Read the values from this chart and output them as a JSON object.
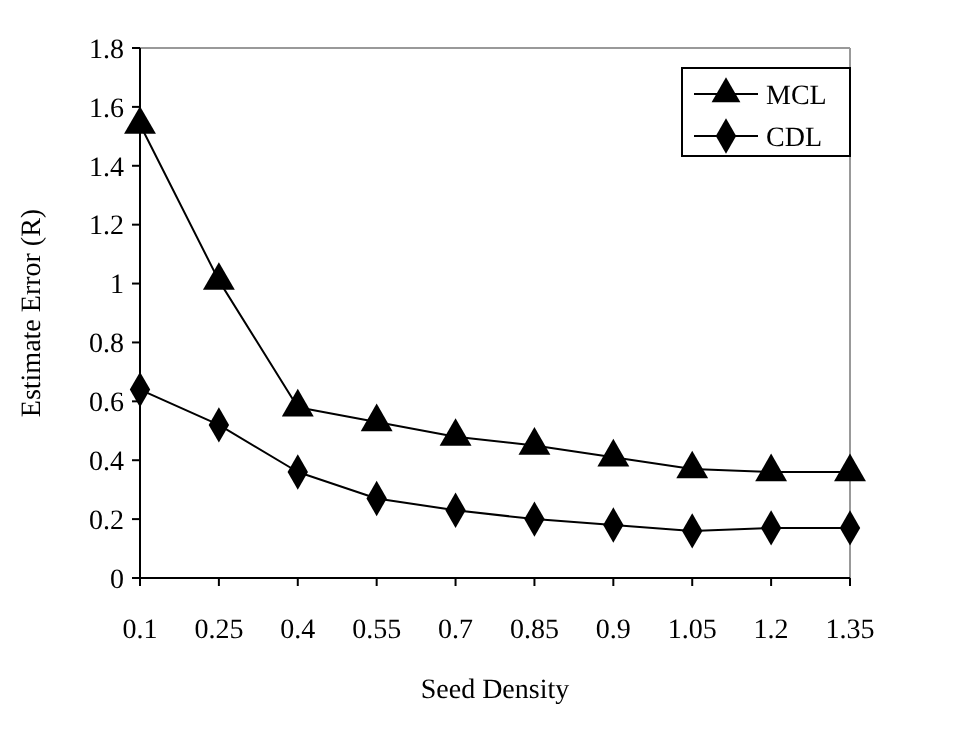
{
  "chart_data": {
    "type": "line",
    "xlabel": "Seed Density",
    "ylabel": "Estimate Error (R)",
    "categories": [
      "0.1",
      "0.25",
      "0.4",
      "0.55",
      "0.7",
      "0.85",
      "0.9",
      "1.05",
      "1.2",
      "1.35"
    ],
    "series": [
      {
        "name": "MCL",
        "color": "#000000",
        "marker": "triangle",
        "values": [
          1.54,
          1.01,
          0.58,
          0.53,
          0.48,
          0.45,
          0.41,
          0.37,
          0.36,
          0.36
        ]
      },
      {
        "name": "CDL",
        "color": "#000000",
        "marker": "diamond",
        "values": [
          0.64,
          0.52,
          0.36,
          0.27,
          0.23,
          0.2,
          0.18,
          0.16,
          0.17,
          0.17
        ]
      }
    ],
    "ylim": [
      0,
      1.8
    ],
    "yticks": [
      0,
      0.2,
      0.4,
      0.6,
      0.8,
      1,
      1.2,
      1.4,
      1.6,
      1.8
    ],
    "grid": false,
    "legend": "top right",
    "line_style": "solid"
  }
}
